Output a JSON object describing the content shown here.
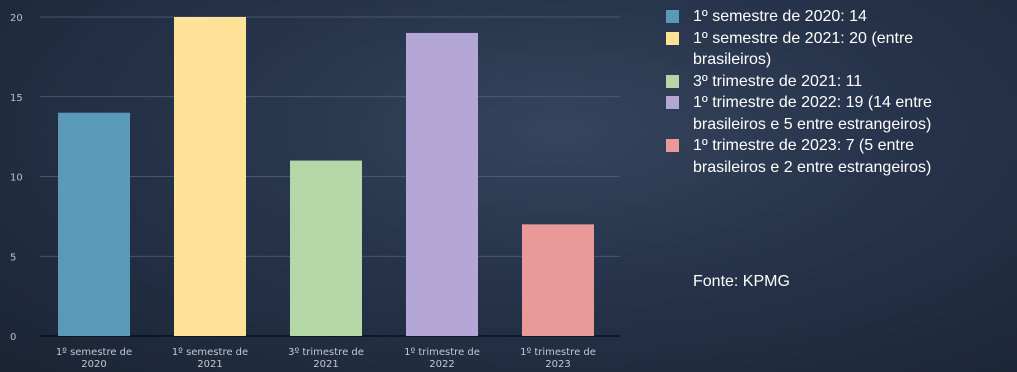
{
  "chart_data": {
    "type": "bar",
    "title": "",
    "xlabel": "",
    "ylabel": "",
    "ylim": [
      0,
      20
    ],
    "yticks": [
      0,
      5,
      10,
      15,
      20
    ],
    "grid": true,
    "legend_position": "right",
    "categories": [
      [
        "1º semestre de",
        "2020"
      ],
      [
        "1º semestre de",
        "2021"
      ],
      [
        "3º trimestre de",
        "2021"
      ],
      [
        "1º trimestre de",
        "2022"
      ],
      [
        "1º trimestre de",
        "2023"
      ]
    ],
    "values": [
      14,
      20,
      11,
      19,
      7
    ],
    "colors": [
      "#5a9ab8",
      "#fde297",
      "#b5d7a8",
      "#b4a7d6",
      "#ea9999"
    ],
    "legend": [
      [
        "1º semestre de 2020: 14"
      ],
      [
        "1º semestre de 2021: 20 (entre",
        "brasileiros)"
      ],
      [
        "3º trimestre de 2021: 11"
      ],
      [
        "1º trimestre de 2022: 19 (14 entre",
        "brasileiros e 5 entre estrangeiros)"
      ],
      [
        "1º trimestre de 2023: 7 (5 entre",
        "brasileiros e 2 entre estrangeiros)"
      ]
    ]
  },
  "source": "Fonte: KPMG"
}
